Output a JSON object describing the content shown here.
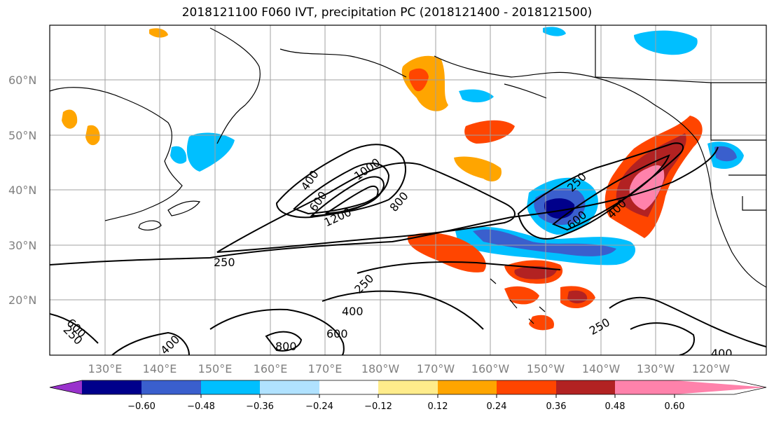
{
  "title": "2018121100 F060 IVT, precipitation PC (2018121400 - 2018121500)",
  "lat_labels": [
    "60°N",
    "50°N",
    "40°N",
    "30°N",
    "20°N"
  ],
  "lon_labels": [
    "130°E",
    "140°E",
    "150°E",
    "160°E",
    "170°E",
    "180°W",
    "170°W",
    "160°W",
    "150°W",
    "140°W",
    "130°W",
    "120°W"
  ],
  "colorbar": {
    "labels": [
      "−0.60",
      "−0.48",
      "−0.36",
      "−0.24",
      "−0.12",
      "0.12",
      "0.24",
      "0.36",
      "0.48",
      "0.60"
    ],
    "colors": [
      "#9932cc",
      "#00008b",
      "#3a5fcd",
      "#00bfff",
      "#b0e2ff",
      "#ffffff",
      "#ffec8b",
      "#ffa500",
      "#ff4500",
      "#b22222",
      "#ff82ab"
    ]
  },
  "ivt_contour_labels": [
    "250",
    "400",
    "600",
    "800",
    "1000",
    "1200",
    "250",
    "250",
    "400",
    "600",
    "800",
    "400",
    "600",
    "250",
    "250",
    "400",
    "600",
    "400"
  ],
  "colors": {
    "frame": "#000000",
    "grid": "#a0a0a0",
    "contour": "#000000",
    "axis_label": "#808080"
  }
}
